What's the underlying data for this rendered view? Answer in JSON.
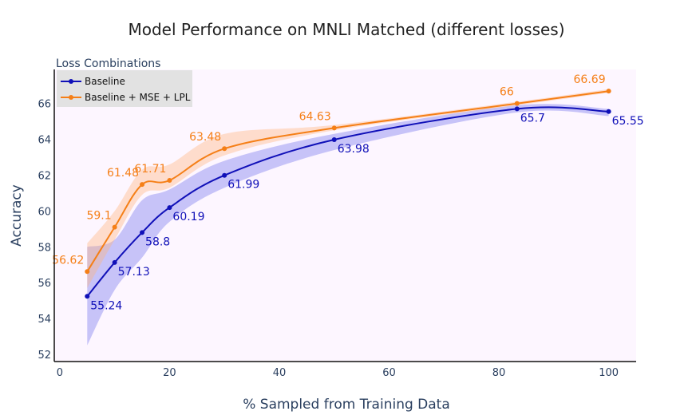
{
  "chart_data": {
    "type": "line",
    "title": "Model Performance on MNLI Matched (different losses)",
    "xlabel": "% Sampled from Training Data",
    "ylabel": "Accuracy",
    "xlim": [
      -1,
      105
    ],
    "ylim": [
      51.6,
      67.9
    ],
    "x_ticks": [
      0,
      20,
      40,
      60,
      80,
      100
    ],
    "y_ticks": [
      52,
      54,
      56,
      58,
      60,
      62,
      64,
      66
    ],
    "legend_title": "Loss Combinations",
    "legend_position": "top-left",
    "series": [
      {
        "name": "Baseline",
        "color": "#1010b8",
        "band_color": "#5858e8",
        "x": [
          5,
          10,
          15,
          20,
          30,
          50,
          83.3,
          100
        ],
        "values": [
          55.24,
          57.13,
          58.8,
          60.19,
          61.99,
          63.98,
          65.7,
          65.55
        ],
        "labels": [
          "55.24",
          "57.13",
          "58.8",
          "60.19",
          "61.99",
          "63.98",
          "65.7",
          "65.55"
        ],
        "band_lower": [
          52.5,
          55.6,
          57.4,
          59.4,
          61.3,
          63.4,
          65.5,
          65.3
        ],
        "band_upper": [
          58.0,
          58.4,
          60.6,
          61.2,
          62.8,
          64.3,
          65.9,
          65.7
        ]
      },
      {
        "name": "Baseline + MSE + LPL",
        "color": "#f57f17",
        "band_color": "#ffb27a",
        "x": [
          5,
          10,
          15,
          20,
          30,
          50,
          83.3,
          100
        ],
        "values": [
          56.62,
          59.1,
          61.48,
          61.71,
          63.48,
          64.63,
          66,
          66.69
        ],
        "labels": [
          "56.62",
          "59.1",
          "61.48",
          "61.71",
          "63.48",
          "64.63",
          "66",
          "66.69"
        ],
        "band_lower": [
          55.7,
          58.4,
          60.9,
          61.3,
          63.1,
          64.5,
          65.9,
          66.6
        ],
        "band_upper": [
          58.2,
          60.0,
          62.3,
          62.6,
          64.3,
          64.8,
          66.1,
          66.8
        ]
      }
    ]
  }
}
